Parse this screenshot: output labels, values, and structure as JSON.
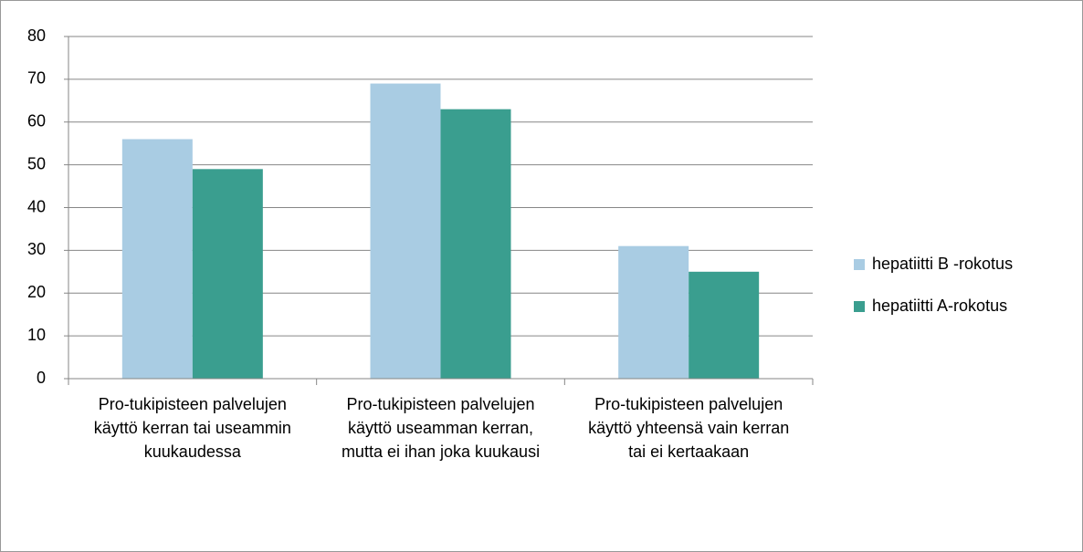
{
  "chart_data": {
    "type": "bar",
    "categories": [
      "Pro-tukipisteen palvelujen käyttö kerran tai useammin kuukaudessa",
      "Pro-tukipisteen palvelujen käyttö useamman kerran, mutta ei ihan joka kuukausi",
      "Pro-tukipisteen palvelujen käyttö yhteensä vain kerran tai ei kertaakaan"
    ],
    "series": [
      {
        "name": "hepatiitti B -rokotus",
        "color": "#a9cce3",
        "values": [
          56,
          69,
          31
        ]
      },
      {
        "name": "hepatiitti A-rokotus",
        "color": "#3a9e8f",
        "values": [
          49,
          63,
          25
        ]
      }
    ],
    "ylim": [
      0,
      80
    ],
    "yticks": [
      0,
      10,
      20,
      30,
      40,
      50,
      60,
      70,
      80
    ],
    "grid": true,
    "legend": "right"
  }
}
